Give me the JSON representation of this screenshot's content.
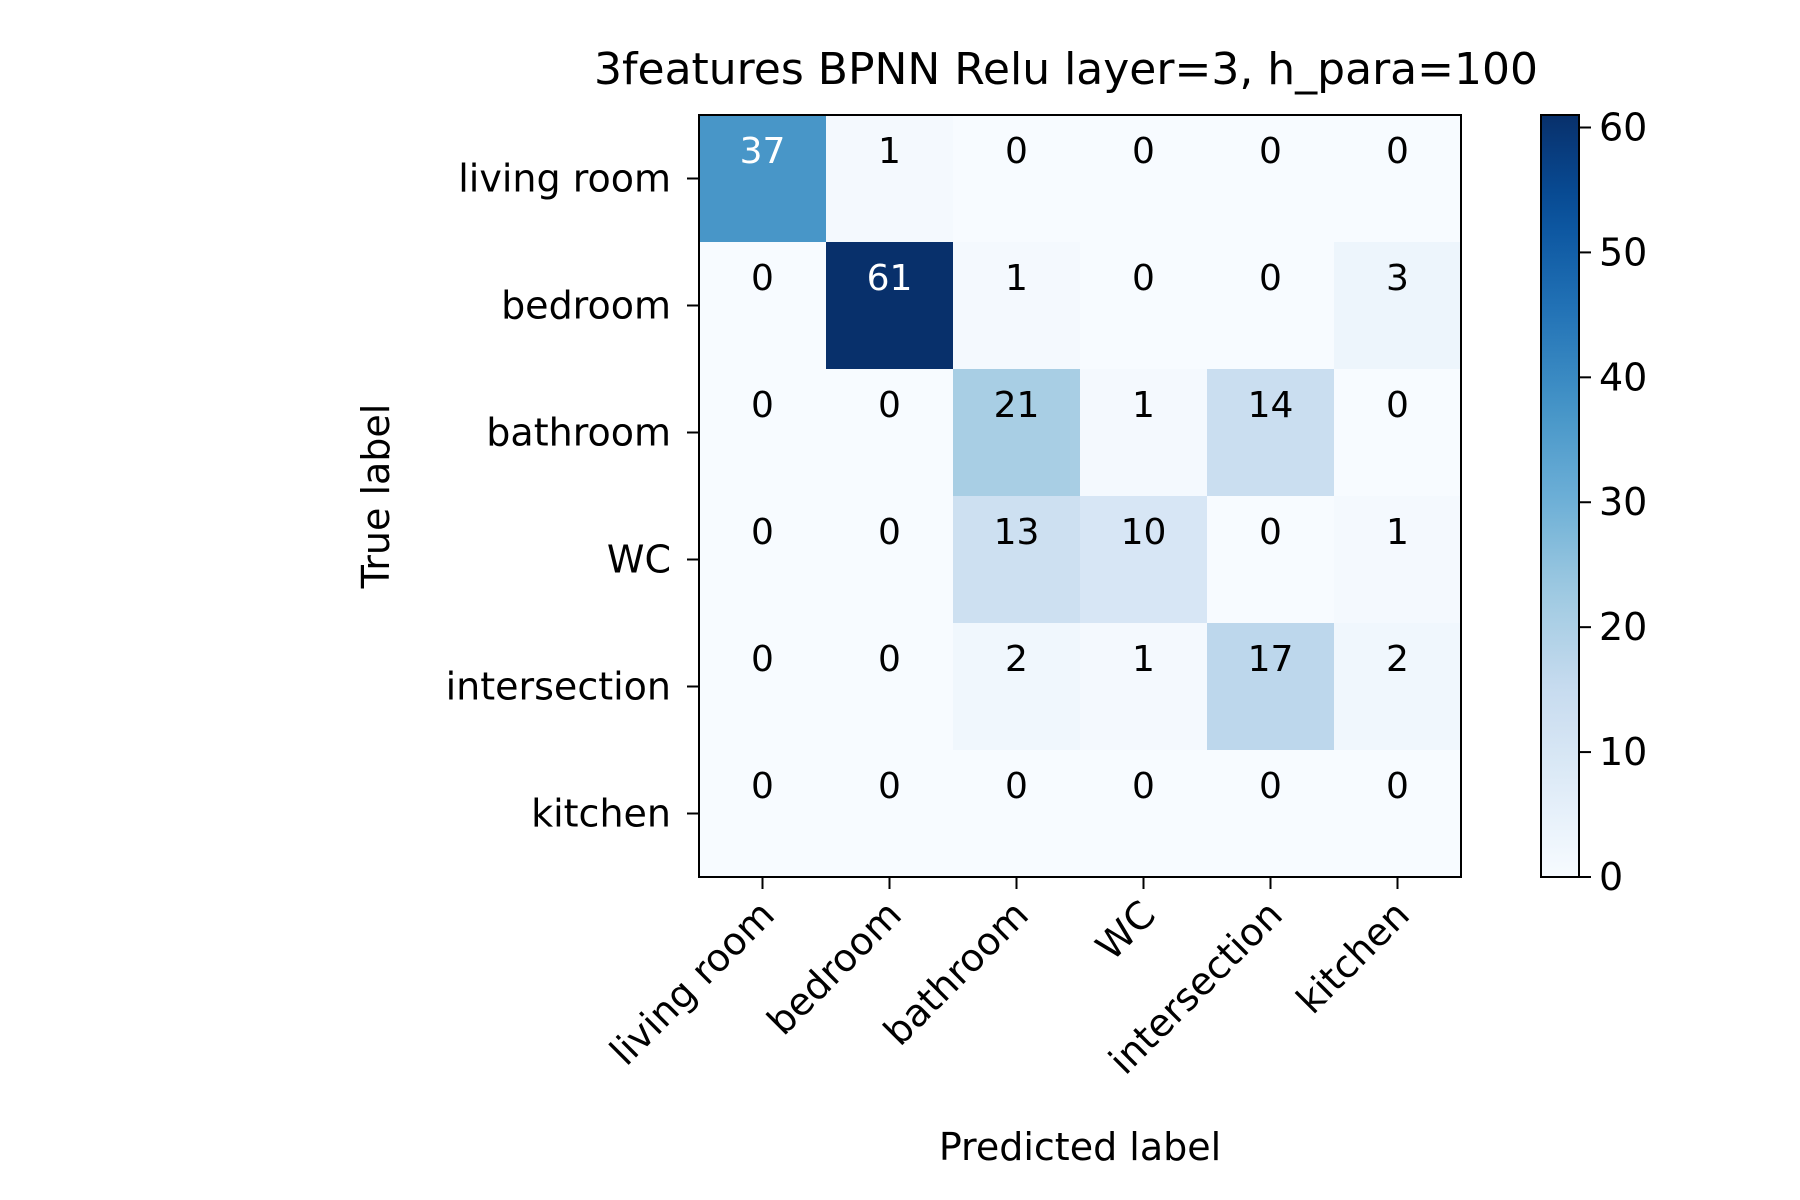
{
  "chart_data": {
    "type": "heatmap",
    "title": "3features BPNN Relu layer=3, h_para=100",
    "xlabel": "Predicted label",
    "ylabel": "True label",
    "categories": [
      "living room",
      "bedroom",
      "bathroom",
      "WC",
      "intersection",
      "kitchen"
    ],
    "matrix": [
      [
        37,
        1,
        0,
        0,
        0,
        0
      ],
      [
        0,
        61,
        1,
        0,
        0,
        3
      ],
      [
        0,
        0,
        21,
        1,
        14,
        0
      ],
      [
        0,
        0,
        13,
        10,
        0,
        1
      ],
      [
        0,
        0,
        2,
        1,
        17,
        2
      ],
      [
        0,
        0,
        0,
        0,
        0,
        0
      ]
    ],
    "colormap": "Blues",
    "colorbar": {
      "min": 0,
      "max": 61,
      "ticks": [
        0,
        10,
        20,
        30,
        40,
        50,
        60
      ]
    },
    "colors": {
      "low": "#f7fbff",
      "high": "#08306b",
      "text_dark": "#000000",
      "text_light": "#ffffff"
    }
  }
}
